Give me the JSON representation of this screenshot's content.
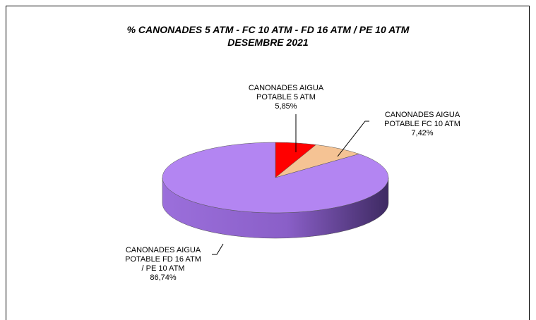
{
  "chart_data": {
    "type": "pie",
    "title": "% CANONADES 5 ATM - FC 10 ATM - FD 16 ATM / PE 10 ATM",
    "subtitle": "DESEMBRE 2021",
    "categories": [
      "CANONADES AIGUA POTABLE 5 ATM",
      "CANONADES AIGUA POTABLE FC 10 ATM",
      "CANONADES AIGUA POTABLE FD 16 ATM / PE 10 ATM"
    ],
    "values": [
      5.85,
      7.42,
      86.74
    ],
    "value_labels": [
      "5,85%",
      "7,42%",
      "86,74%"
    ],
    "colors": [
      "#ff0000",
      "#f5c394",
      "#b385f2"
    ]
  }
}
